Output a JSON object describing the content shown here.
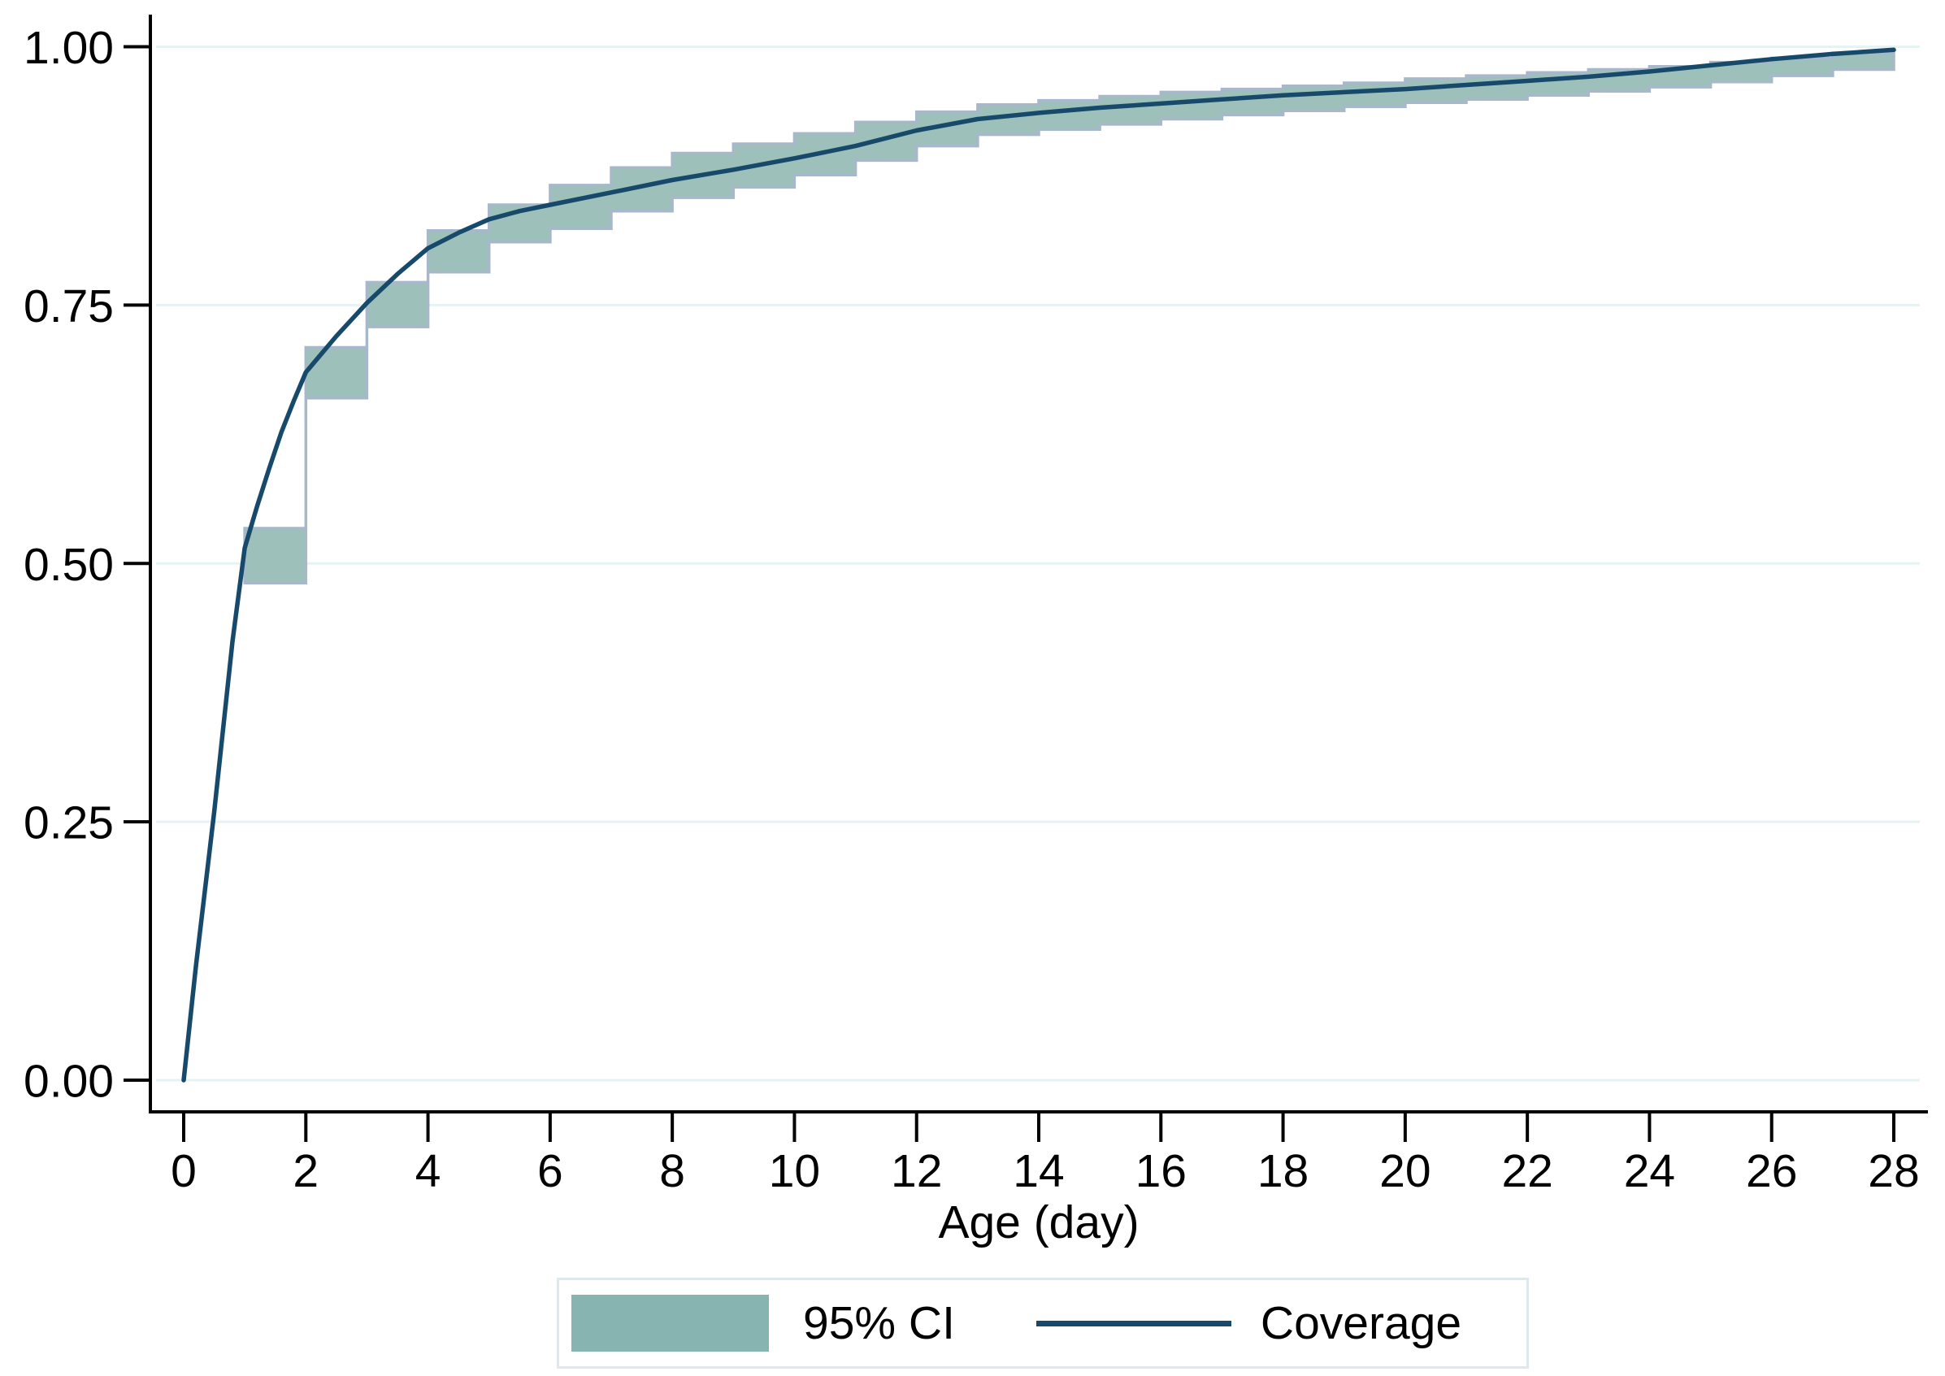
{
  "legend": {
    "ci_label": "95% CI",
    "coverage_label": "Coverage",
    "border_color": "#dfe9ec",
    "swatch_color": "#87b4b0",
    "line_sample_color": "#17496b"
  },
  "chart_data": {
    "type": "line",
    "title": "",
    "xlabel": "Age (day)",
    "ylabel": "",
    "xlim": [
      0,
      28
    ],
    "ylim": [
      0.0,
      1.0
    ],
    "grid": "horizontal",
    "legend_position": "bottom-center",
    "x_ticks": [
      0,
      2,
      4,
      6,
      8,
      10,
      12,
      14,
      16,
      18,
      20,
      22,
      24,
      26,
      28
    ],
    "y_ticks": [
      {
        "value": 0.0,
        "label": "0.00"
      },
      {
        "value": 0.25,
        "label": "0.25"
      },
      {
        "value": 0.5,
        "label": "0.50"
      },
      {
        "value": 0.75,
        "label": "0.75"
      },
      {
        "value": 1.0,
        "label": "1.00"
      }
    ],
    "colors": {
      "coverage_line": "#17496b",
      "ci_band_fill": "#9ec0ba",
      "ci_band_outline": "#a6b8c9",
      "gridline": "#e7f2f3",
      "axis": "#000000",
      "text": "#000000"
    },
    "series": [
      {
        "name": "Coverage",
        "type": "line",
        "x": [
          0,
          0.2,
          0.4,
          0.5,
          0.6,
          0.8,
          1,
          1.2,
          1.4,
          1.6,
          1.8,
          2,
          2.5,
          3,
          3.5,
          4,
          4.5,
          5,
          5.5,
          6,
          7,
          8,
          9,
          10,
          11,
          12,
          13,
          14,
          15,
          16,
          17,
          18,
          19,
          20,
          21,
          22,
          23,
          24,
          25,
          26,
          27,
          28
        ],
        "y": [
          0,
          0.11,
          0.21,
          0.26,
          0.315,
          0.425,
          0.515,
          0.555,
          0.592,
          0.627,
          0.657,
          0.685,
          0.72,
          0.752,
          0.78,
          0.805,
          0.82,
          0.833,
          0.841,
          0.847,
          0.859,
          0.871,
          0.881,
          0.892,
          0.904,
          0.919,
          0.93,
          0.936,
          0.941,
          0.945,
          0.949,
          0.953,
          0.956,
          0.959,
          0.963,
          0.967,
          0.971,
          0.976,
          0.982,
          0.988,
          0.993,
          0.997
        ]
      },
      {
        "name": "95% CI",
        "type": "step-band",
        "steps": [
          {
            "day": 1,
            "lo": 0.481,
            "hi": 0.534
          },
          {
            "day": 2,
            "lo": 0.66,
            "hi": 0.709
          },
          {
            "day": 3,
            "lo": 0.729,
            "hi": 0.772
          },
          {
            "day": 4,
            "lo": 0.782,
            "hi": 0.822
          },
          {
            "day": 5,
            "lo": 0.811,
            "hi": 0.847
          },
          {
            "day": 6,
            "lo": 0.824,
            "hi": 0.866
          },
          {
            "day": 7,
            "lo": 0.841,
            "hi": 0.883
          },
          {
            "day": 8,
            "lo": 0.854,
            "hi": 0.897
          },
          {
            "day": 9,
            "lo": 0.864,
            "hi": 0.906
          },
          {
            "day": 10,
            "lo": 0.876,
            "hi": 0.916
          },
          {
            "day": 11,
            "lo": 0.89,
            "hi": 0.927
          },
          {
            "day": 12,
            "lo": 0.904,
            "hi": 0.937
          },
          {
            "day": 13,
            "lo": 0.915,
            "hi": 0.944
          },
          {
            "day": 14,
            "lo": 0.92,
            "hi": 0.948
          },
          {
            "day": 15,
            "lo": 0.925,
            "hi": 0.952
          },
          {
            "day": 16,
            "lo": 0.93,
            "hi": 0.956
          },
          {
            "day": 17,
            "lo": 0.934,
            "hi": 0.959
          },
          {
            "day": 18,
            "lo": 0.938,
            "hi": 0.962
          },
          {
            "day": 19,
            "lo": 0.942,
            "hi": 0.965
          },
          {
            "day": 20,
            "lo": 0.946,
            "hi": 0.969
          },
          {
            "day": 21,
            "lo": 0.949,
            "hi": 0.972
          },
          {
            "day": 22,
            "lo": 0.953,
            "hi": 0.975
          },
          {
            "day": 23,
            "lo": 0.957,
            "hi": 0.978
          },
          {
            "day": 24,
            "lo": 0.961,
            "hi": 0.981
          },
          {
            "day": 25,
            "lo": 0.966,
            "hi": 0.985
          },
          {
            "day": 26,
            "lo": 0.972,
            "hi": 0.989
          },
          {
            "day": 27,
            "lo": 0.978,
            "hi": 0.994
          }
        ]
      }
    ]
  }
}
